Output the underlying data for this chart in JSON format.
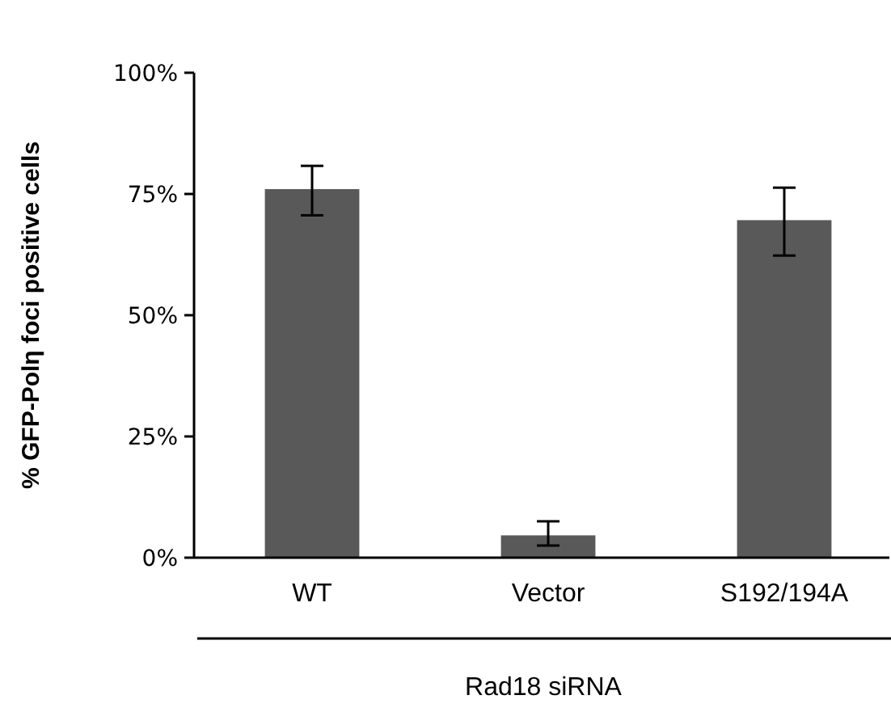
{
  "chart_data": {
    "type": "bar",
    "ylabel": "% GFP-Polη foci positive cells",
    "xlabel": "Rad18 siRNA",
    "categories": [
      "WT",
      "Vector",
      "S192/194A"
    ],
    "values": [
      76,
      4.6,
      69.6
    ],
    "errors": [
      [
        70.6,
        80.8
      ],
      [
        2.5,
        7.5
      ],
      [
        62.3,
        76.3
      ]
    ],
    "color": "#595959",
    "ylim": [
      0,
      100
    ],
    "yticks": [
      {
        "value": 0,
        "label": "0%"
      },
      {
        "value": 25,
        "label": "25%"
      },
      {
        "value": 50,
        "label": "50%"
      },
      {
        "value": 75,
        "label": "75%"
      },
      {
        "value": 100,
        "label": "100%"
      }
    ],
    "grid": false
  }
}
